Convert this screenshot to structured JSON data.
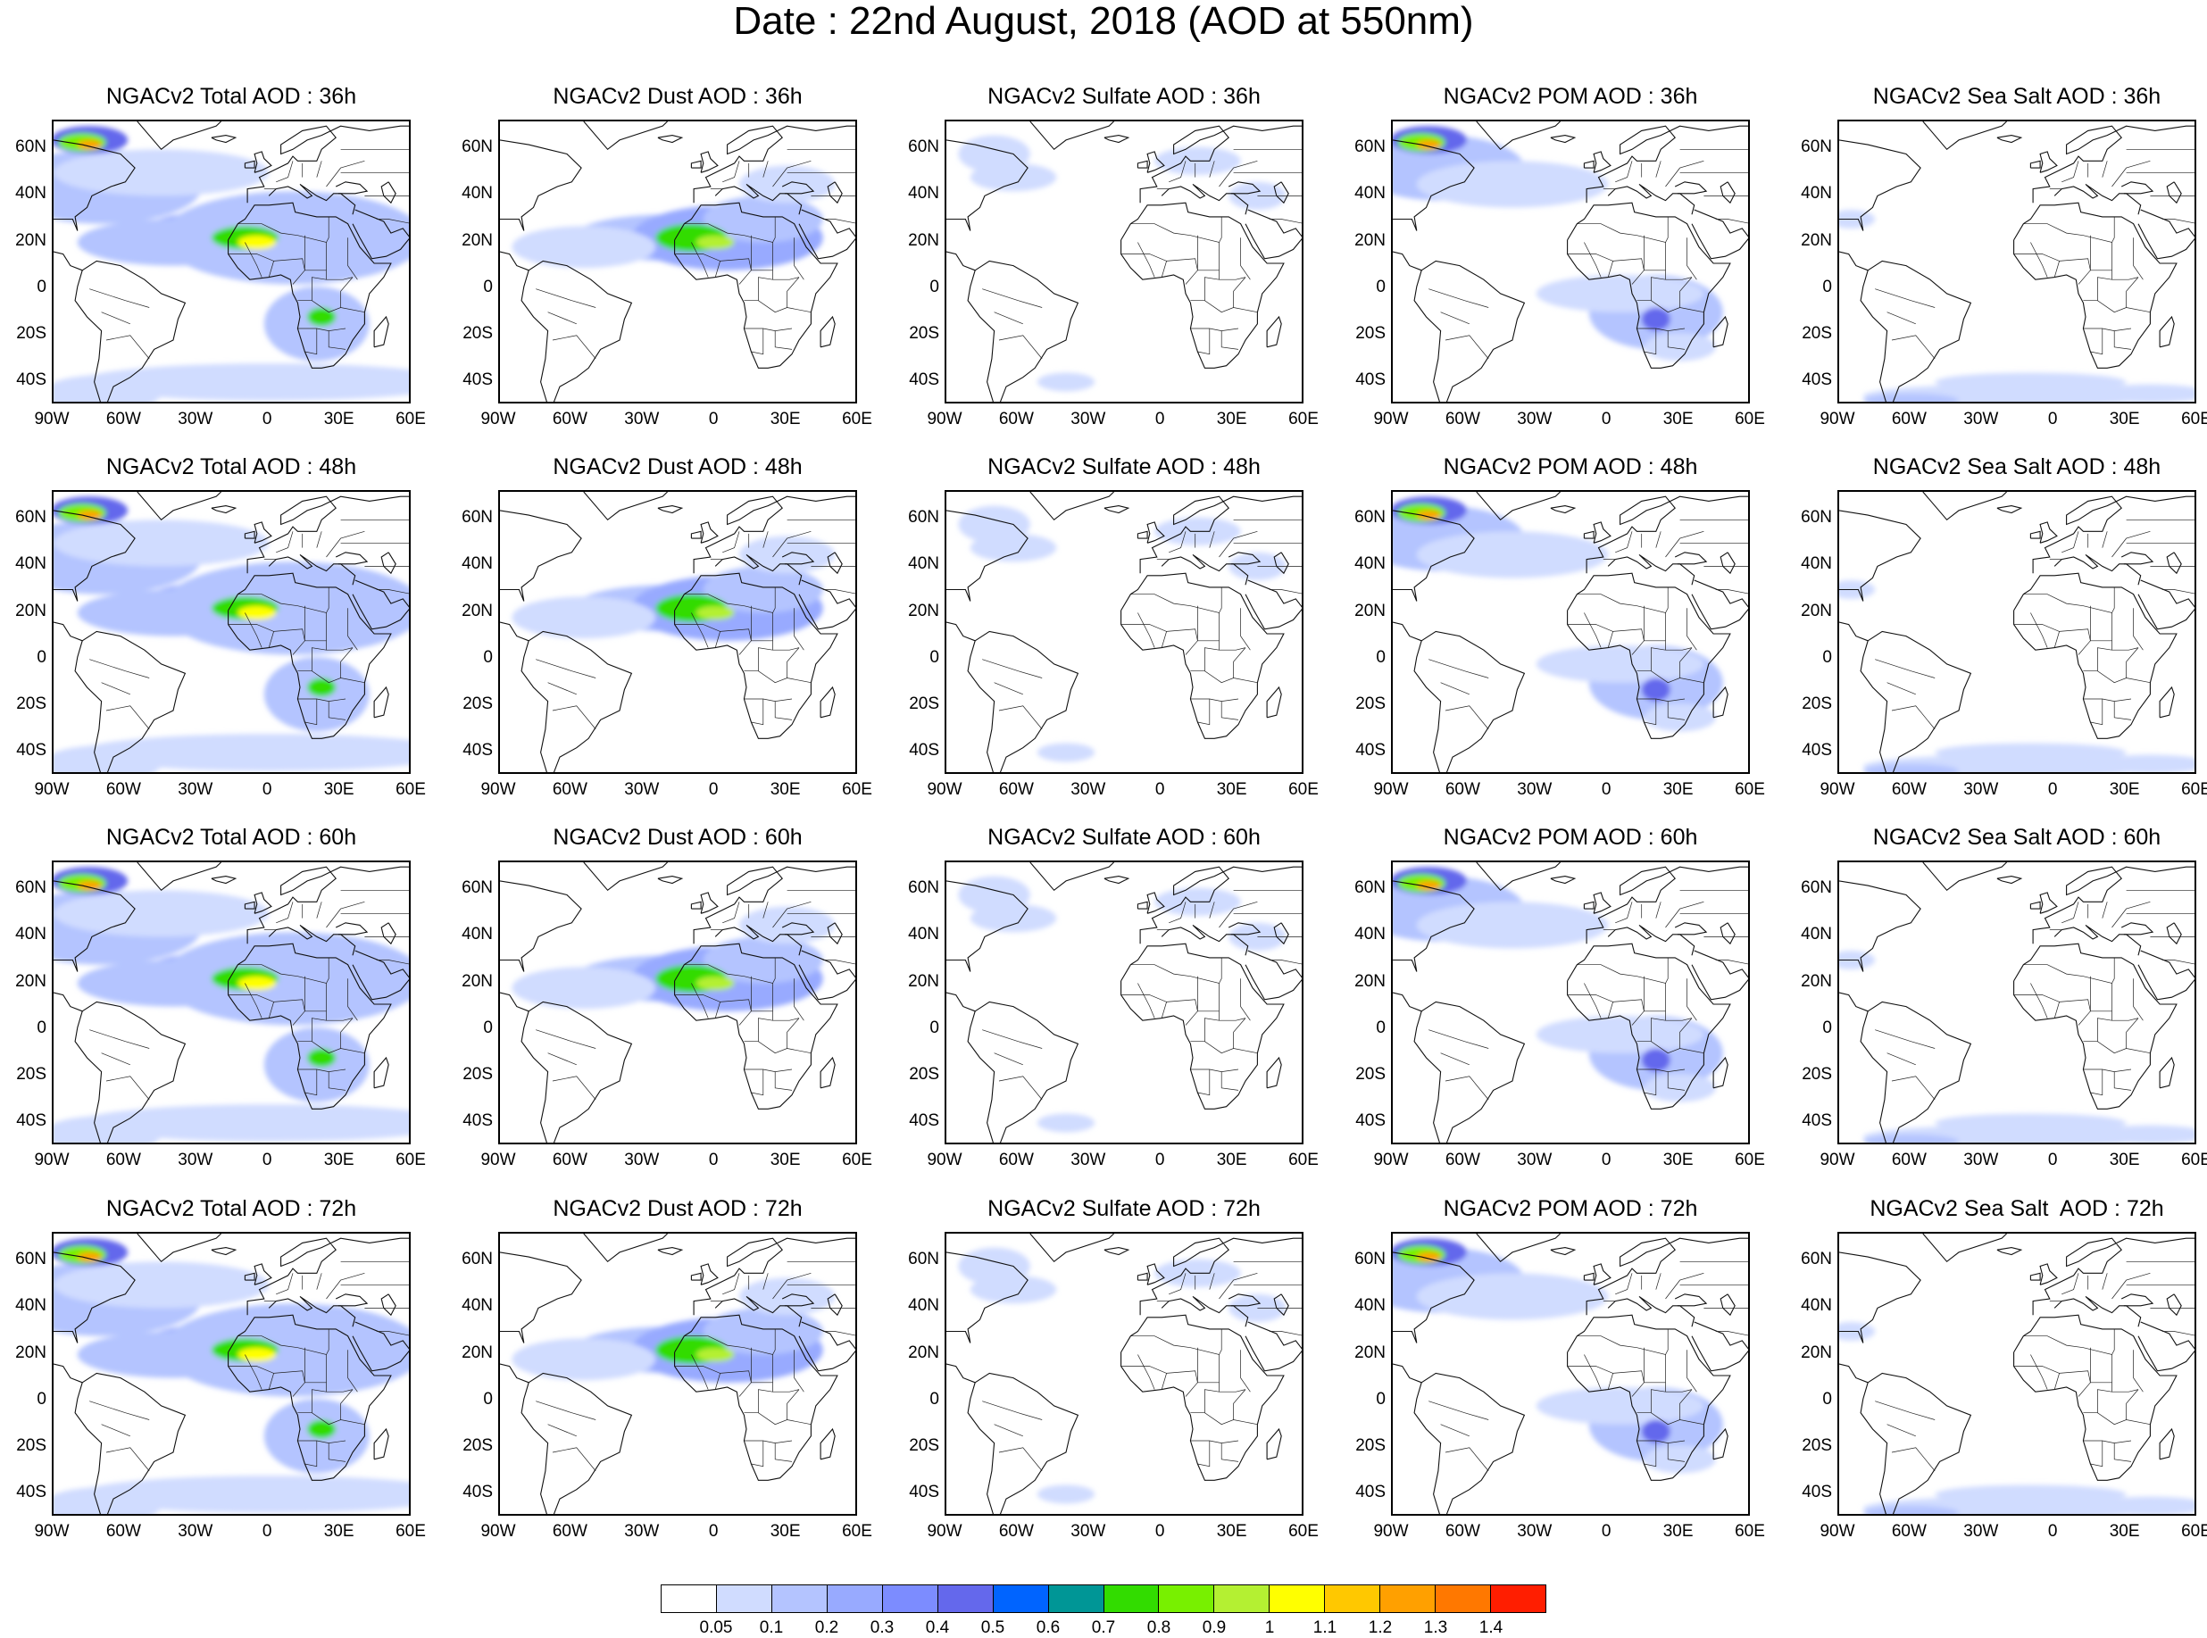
{
  "page_title": "Date : 22nd August, 2018 (AOD at 550nm)",
  "lat_labels": [
    "60N",
    "40N",
    "20N",
    "0",
    "20S",
    "40S"
  ],
  "lon_labels": [
    "90W",
    "60W",
    "30W",
    "0",
    "30E",
    "60E"
  ],
  "panels": [
    {
      "title": "NGACv2 Total AOD : 36h",
      "species": "total"
    },
    {
      "title": "NGACv2 Dust AOD : 36h",
      "species": "dust"
    },
    {
      "title": "NGACv2 Sulfate AOD : 36h",
      "species": "sulfate"
    },
    {
      "title": "NGACv2 POM AOD : 36h",
      "species": "pom"
    },
    {
      "title": "NGACv2 Sea Salt AOD : 36h",
      "species": "seasalt"
    },
    {
      "title": "NGACv2 Total AOD : 48h",
      "species": "total"
    },
    {
      "title": "NGACv2 Dust AOD : 48h",
      "species": "dust"
    },
    {
      "title": "NGACv2 Sulfate AOD : 48h",
      "species": "sulfate"
    },
    {
      "title": "NGACv2 POM AOD : 48h",
      "species": "pom"
    },
    {
      "title": "NGACv2 Sea Salt AOD : 48h",
      "species": "seasalt"
    },
    {
      "title": "NGACv2 Total AOD : 60h",
      "species": "total"
    },
    {
      "title": "NGACv2 Dust AOD : 60h",
      "species": "dust"
    },
    {
      "title": "NGACv2 Sulfate AOD : 60h",
      "species": "sulfate"
    },
    {
      "title": "NGACv2 POM AOD : 60h",
      "species": "pom"
    },
    {
      "title": "NGACv2 Sea Salt AOD : 60h",
      "species": "seasalt"
    },
    {
      "title": "NGACv2 Total AOD : 72h",
      "species": "total"
    },
    {
      "title": "NGACv2 Dust AOD : 72h",
      "species": "dust"
    },
    {
      "title": "NGACv2 Sulfate AOD : 72h",
      "species": "sulfate"
    },
    {
      "title": "NGACv2 POM AOD : 72h",
      "species": "pom"
    },
    {
      "title": "NGACv2 Sea Salt  AOD : 72h",
      "species": "seasalt"
    }
  ],
  "colorbar": {
    "labels": [
      "0.05",
      "0.1",
      "0.2",
      "0.3",
      "0.4",
      "0.5",
      "0.6",
      "0.7",
      "0.8",
      "0.9",
      "1",
      "1.1",
      "1.2",
      "1.3",
      "1.4"
    ],
    "colors": [
      "#ffffff",
      "#d0dcff",
      "#b4c4ff",
      "#98aaff",
      "#7c8cff",
      "#6468ec",
      "#0064ff",
      "#009696",
      "#32dc00",
      "#78f000",
      "#b4f032",
      "#ffff00",
      "#ffc800",
      "#ffa000",
      "#ff7800",
      "#ff1e00"
    ]
  }
}
